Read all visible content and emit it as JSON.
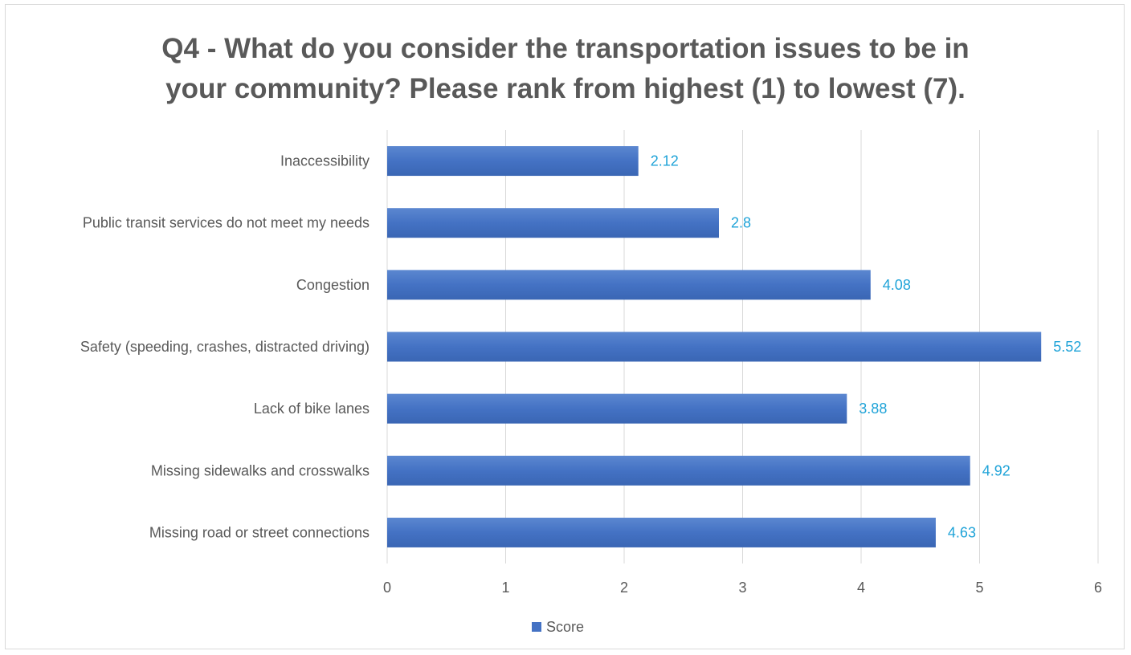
{
  "chart_data": {
    "type": "bar",
    "orientation": "horizontal",
    "title_lines": [
      "Q4 - What do you consider the transportation issues to be in",
      "your community? Please rank from highest (1) to lowest (7)."
    ],
    "categories": [
      "Inaccessibility",
      "Public transit services do not meet my needs",
      "Congestion",
      "Safety (speeding, crashes, distracted driving)",
      "Lack of bike lanes",
      "Missing sidewalks and crosswalks",
      "Missing road or street connections"
    ],
    "series": [
      {
        "name": "Score",
        "values": [
          2.12,
          2.8,
          4.08,
          5.52,
          3.88,
          4.92,
          4.63
        ],
        "labels": [
          "2.12",
          "2.8",
          "4.08",
          "5.52",
          "3.88",
          "4.92",
          "4.63"
        ],
        "color": "#4472c4"
      }
    ],
    "xlim": [
      0,
      6
    ],
    "xticks": [
      "0",
      "1",
      "2",
      "3",
      "4",
      "5",
      "6"
    ],
    "grid": true,
    "legend": "bottom",
    "colors": {
      "bar": "#4472c4",
      "data_label": "#1fa3d8",
      "text": "#595959",
      "grid": "#d9d9d9"
    }
  }
}
